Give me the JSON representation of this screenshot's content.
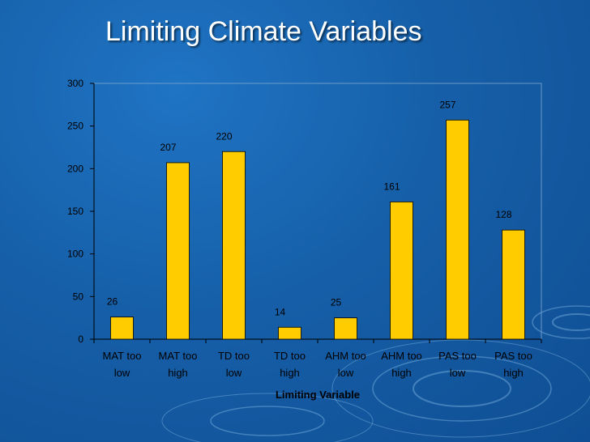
{
  "slide": {
    "title": "Limiting Climate Variables"
  },
  "chart_data": {
    "type": "bar",
    "categories": [
      [
        "MAT too",
        "low"
      ],
      [
        "MAT too",
        "high"
      ],
      [
        "TD too",
        "low"
      ],
      [
        "TD too",
        "high"
      ],
      [
        "AHM too",
        "low"
      ],
      [
        "AHM too",
        "high"
      ],
      [
        "PAS too",
        "low"
      ],
      [
        "PAS too",
        "high"
      ]
    ],
    "values": [
      26,
      207,
      220,
      14,
      25,
      161,
      257,
      128
    ],
    "data_labels": [
      "26",
      "207",
      "220",
      "14",
      "25",
      "161",
      "257",
      "128"
    ],
    "title": "",
    "xlabel": "Limiting Variable",
    "ylabel": "",
    "ylim": [
      0,
      300
    ],
    "yticks": [
      0,
      50,
      100,
      150,
      200,
      250,
      300
    ],
    "ytick_labels": [
      "0",
      "50",
      "100",
      "150",
      "200",
      "250",
      "300"
    ],
    "grid": false,
    "legend": "none",
    "colors": {
      "bar": "#ffcc00",
      "bar_edge": "#000000",
      "axis": "#000000"
    }
  }
}
